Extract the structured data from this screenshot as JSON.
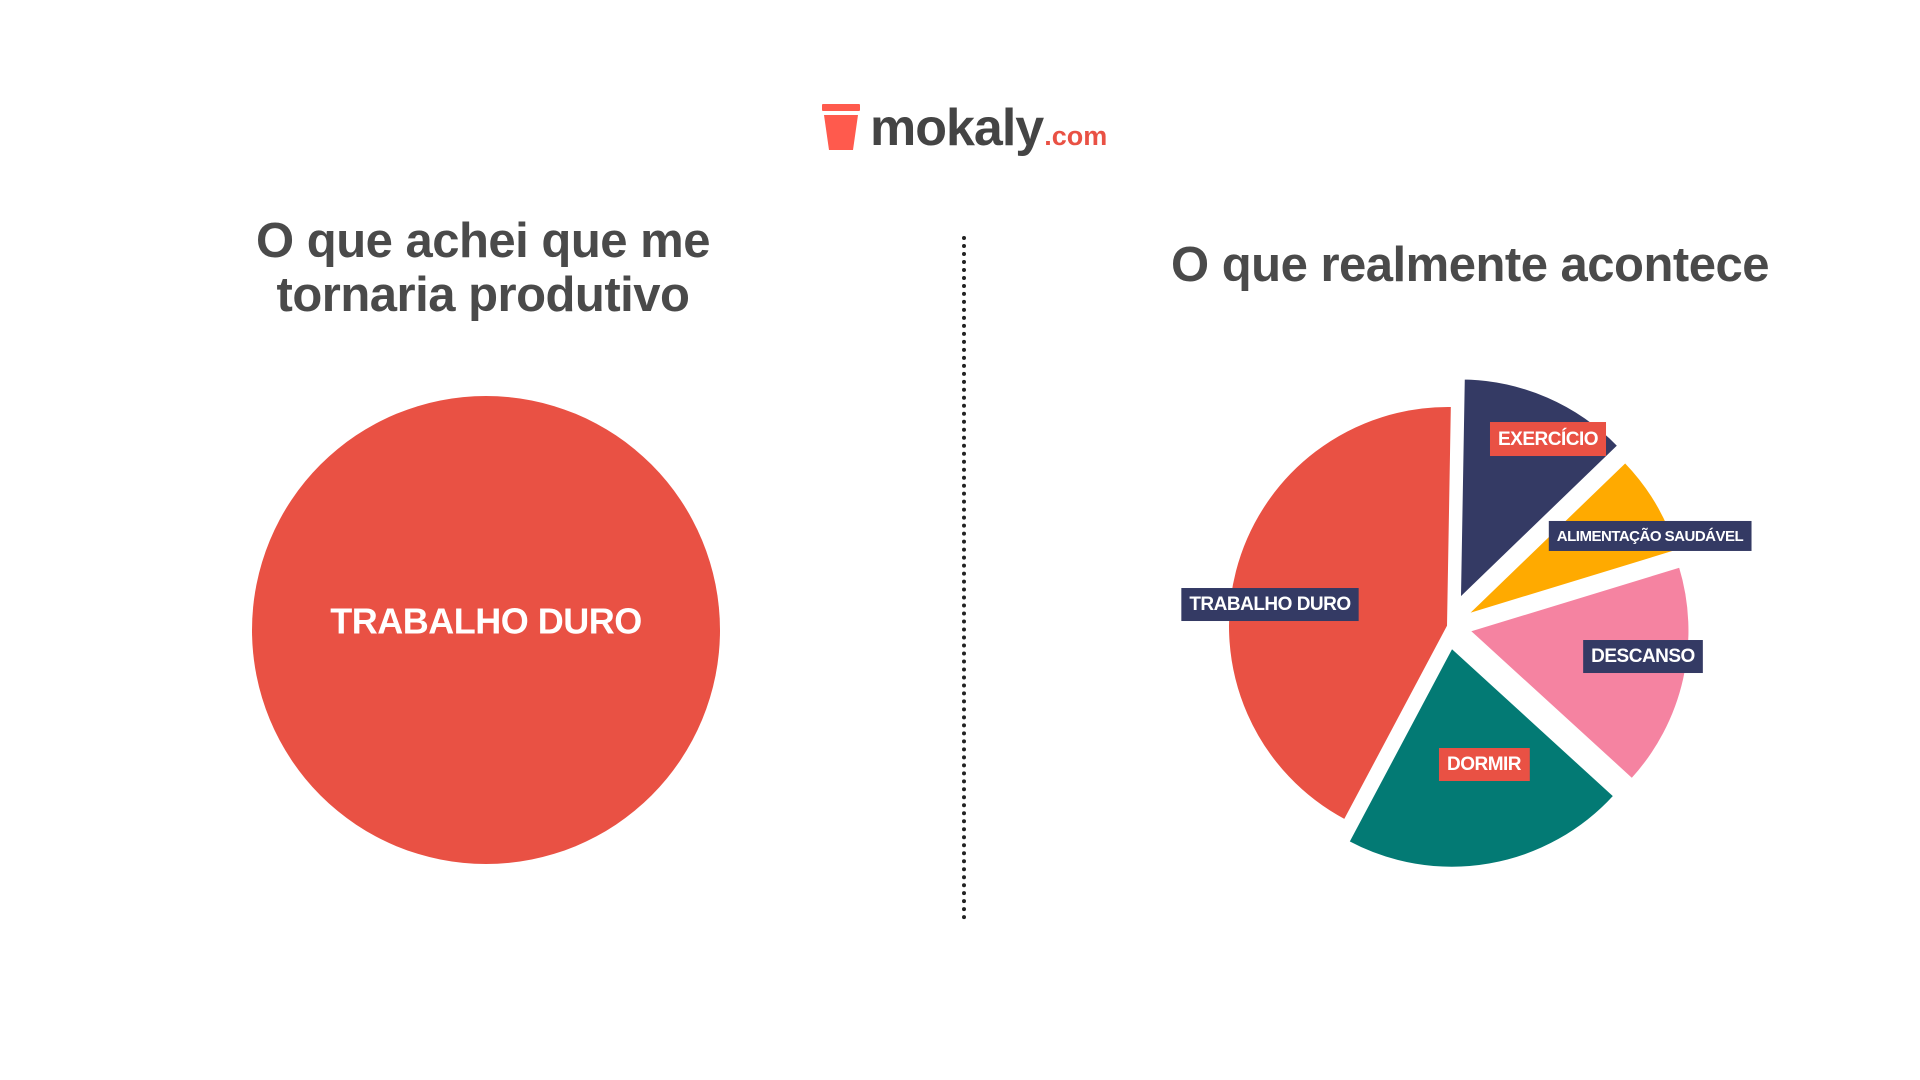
{
  "brand": {
    "name": "mokaly",
    "tld": ".com",
    "color": "#e95144"
  },
  "chart_data": [
    {
      "type": "pie",
      "title": "O que achei que me tornaria produtivo",
      "slices": [
        {
          "label": "TRABALHO DURO",
          "value": 100,
          "color": "#e95144",
          "label_style": "plain"
        }
      ]
    },
    {
      "type": "pie",
      "title": "O que realmente acontece",
      "slices": [
        {
          "label": "EXERCÍCIO",
          "value": 12.5,
          "color": "#343a64",
          "label_bg": "#e95144",
          "exploded": true
        },
        {
          "label": "ALIMENTAÇÃO SAUDÁVEL",
          "value": 7.5,
          "color": "#ffaa00",
          "label_bg": "#343a64",
          "exploded": true
        },
        {
          "label": "DESCANSO",
          "value": 16.5,
          "color": "#f583a1",
          "label_bg": "#343a64",
          "exploded": true
        },
        {
          "label": "DORMIR",
          "value": 21,
          "color": "#037a74",
          "label_bg": "#e95144",
          "exploded": true
        },
        {
          "label": "TRABALHO DURO",
          "value": 42.5,
          "color": "#e95144",
          "label_bg": "#343a64",
          "exploded": false
        }
      ]
    }
  ]
}
